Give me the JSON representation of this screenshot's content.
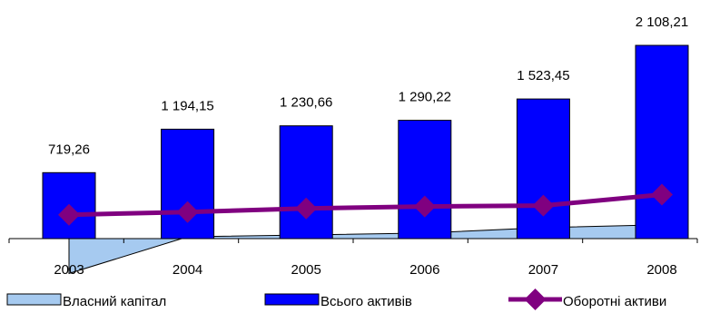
{
  "chart_data": {
    "type": "bar",
    "title": "",
    "xlabel": "",
    "ylabel": "",
    "categories": [
      "2003",
      "2004",
      "2005",
      "2006",
      "2007",
      "2008"
    ],
    "ylim": [
      -385,
      2300
    ],
    "grid": false,
    "legend_position": "bottom",
    "series": [
      {
        "name": "Власний капітал",
        "kind": "area",
        "color": "#a6caf0",
        "values": [
          -380,
          20,
          40,
          60,
          120,
          150
        ]
      },
      {
        "name": "Всього активів",
        "kind": "bar",
        "color": "#0000ff",
        "values": [
          719.26,
          1194.15,
          1230.66,
          1290.22,
          1523.45,
          2108.21
        ],
        "labels": [
          "719,26",
          "1 194,15",
          "1 230,66",
          "1 290,22",
          "1 523,45",
          "2 108,21"
        ]
      },
      {
        "name": "Оборотні активи",
        "kind": "line",
        "color": "#800080",
        "values": [
          260,
          290,
          330,
          350,
          360,
          480
        ]
      }
    ]
  }
}
